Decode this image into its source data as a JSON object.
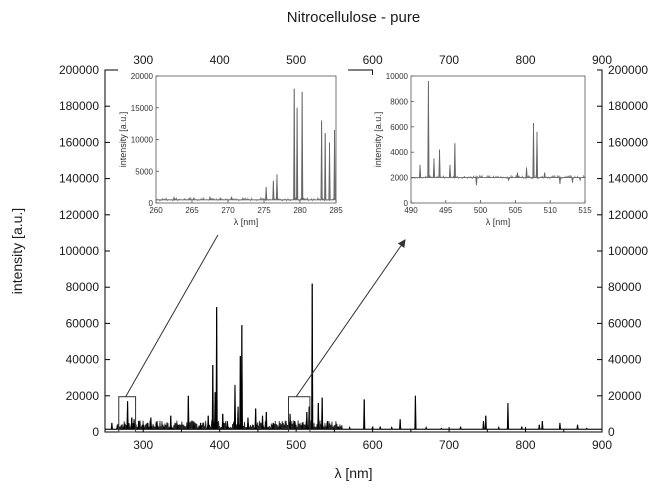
{
  "chart_data": {
    "type": "line",
    "title": "Nitrocellulose - pure",
    "xlabel": "λ [nm]",
    "ylabel": "intensity [a.u.]",
    "xlim": [
      250,
      900
    ],
    "ylim": [
      0,
      200000
    ],
    "x_ticks": [
      300,
      400,
      500,
      600,
      700,
      800,
      900
    ],
    "y_ticks": [
      0,
      20000,
      40000,
      60000,
      80000,
      100000,
      120000,
      140000,
      160000,
      180000,
      200000
    ],
    "x_tick_labels": [
      "300",
      "400",
      "500",
      "600",
      "700",
      "800",
      "900"
    ],
    "y_tick_labels": [
      "0",
      "20000",
      "40000",
      "60000",
      "80000",
      "100000",
      "120000",
      "140000",
      "160000",
      "180000",
      "200000"
    ],
    "top_tick_labels": [
      "300",
      "400",
      "500",
      "600",
      "700",
      "800",
      "900"
    ],
    "right_tick_labels": [
      "0",
      "20000",
      "40000",
      "60000",
      "80000",
      "100000",
      "120000",
      "140000",
      "160000",
      "180000",
      "200000"
    ],
    "baseline": 1500,
    "peaks": [
      {
        "x": 259,
        "y": 5000
      },
      {
        "x": 266,
        "y": 3000
      },
      {
        "x": 275,
        "y": 4000
      },
      {
        "x": 279.5,
        "y": 17000
      },
      {
        "x": 285,
        "y": 8000
      },
      {
        "x": 288,
        "y": 7000
      },
      {
        "x": 294,
        "y": 6000
      },
      {
        "x": 300,
        "y": 4000
      },
      {
        "x": 306,
        "y": 5000
      },
      {
        "x": 310,
        "y": 8000
      },
      {
        "x": 318,
        "y": 6000
      },
      {
        "x": 327,
        "y": 3000
      },
      {
        "x": 336,
        "y": 9000
      },
      {
        "x": 345,
        "y": 4000
      },
      {
        "x": 359,
        "y": 20000
      },
      {
        "x": 366,
        "y": 4000
      },
      {
        "x": 375,
        "y": 5000
      },
      {
        "x": 385,
        "y": 9000
      },
      {
        "x": 391,
        "y": 37000
      },
      {
        "x": 394,
        "y": 22000
      },
      {
        "x": 396,
        "y": 69000
      },
      {
        "x": 404,
        "y": 10000
      },
      {
        "x": 410,
        "y": 6000
      },
      {
        "x": 420,
        "y": 26000
      },
      {
        "x": 424,
        "y": 14000
      },
      {
        "x": 427,
        "y": 42000
      },
      {
        "x": 429,
        "y": 59000
      },
      {
        "x": 437,
        "y": 8000
      },
      {
        "x": 447,
        "y": 13000
      },
      {
        "x": 456,
        "y": 9000
      },
      {
        "x": 461,
        "y": 11000
      },
      {
        "x": 470,
        "y": 5000
      },
      {
        "x": 479,
        "y": 3000
      },
      {
        "x": 492,
        "y": 10000
      },
      {
        "x": 498,
        "y": 6000
      },
      {
        "x": 508,
        "y": 4000
      },
      {
        "x": 514,
        "y": 11000
      },
      {
        "x": 517,
        "y": 14000
      },
      {
        "x": 521,
        "y": 82000
      },
      {
        "x": 529,
        "y": 16000
      },
      {
        "x": 534,
        "y": 19000
      },
      {
        "x": 541,
        "y": 6000
      },
      {
        "x": 555,
        "y": 3000
      },
      {
        "x": 570,
        "y": 2500
      },
      {
        "x": 589,
        "y": 18000
      },
      {
        "x": 600,
        "y": 3000
      },
      {
        "x": 610,
        "y": 3000
      },
      {
        "x": 625,
        "y": 2500
      },
      {
        "x": 636,
        "y": 7000
      },
      {
        "x": 656,
        "y": 20000
      },
      {
        "x": 670,
        "y": 2500
      },
      {
        "x": 690,
        "y": 2000
      },
      {
        "x": 715,
        "y": 3000
      },
      {
        "x": 745,
        "y": 6000
      },
      {
        "x": 748,
        "y": 9000
      },
      {
        "x": 765,
        "y": 2500
      },
      {
        "x": 777,
        "y": 16000
      },
      {
        "x": 795,
        "y": 3000
      },
      {
        "x": 818,
        "y": 4000
      },
      {
        "x": 822,
        "y": 6000
      },
      {
        "x": 845,
        "y": 5000
      },
      {
        "x": 868,
        "y": 4000
      },
      {
        "x": 880,
        "y": 2000
      }
    ],
    "insets": [
      {
        "xlabel": "λ [nm]",
        "ylabel": "intensity [a.u.]",
        "xlim": [
          260,
          285
        ],
        "ylim": [
          0,
          20000
        ],
        "x_tick_labels": [
          "260",
          "265",
          "270",
          "275",
          "280",
          "285"
        ],
        "x_ticks": [
          260,
          265,
          270,
          275,
          280,
          285
        ],
        "y_tick_labels": [
          "0",
          "5000",
          "10000",
          "15000",
          "20000"
        ],
        "y_ticks": [
          0,
          5000,
          10000,
          15000,
          20000
        ],
        "baseline": 500,
        "peaks": [
          {
            "x": 262.5,
            "y": 900
          },
          {
            "x": 267.5,
            "y": 1000
          },
          {
            "x": 270.5,
            "y": 900
          },
          {
            "x": 275.3,
            "y": 2500
          },
          {
            "x": 276.3,
            "y": 3500
          },
          {
            "x": 276.8,
            "y": 4500
          },
          {
            "x": 279.2,
            "y": 18000
          },
          {
            "x": 279.6,
            "y": 15000
          },
          {
            "x": 280.3,
            "y": 17500
          },
          {
            "x": 283.0,
            "y": 13000
          },
          {
            "x": 283.5,
            "y": 11000
          },
          {
            "x": 284.1,
            "y": 9500
          },
          {
            "x": 284.8,
            "y": 11500
          }
        ]
      },
      {
        "xlabel": "λ [nm]",
        "ylabel": "intensity [a.u.]",
        "xlim": [
          490,
          515
        ],
        "ylim": [
          0,
          10000
        ],
        "x_tick_labels": [
          "490",
          "495",
          "500",
          "505",
          "510",
          "515"
        ],
        "x_ticks": [
          490,
          495,
          500,
          505,
          510,
          515
        ],
        "y_tick_labels": [
          "0",
          "2000",
          "4000",
          "6000",
          "8000",
          "10000"
        ],
        "y_ticks": [
          0,
          2000,
          4000,
          6000,
          8000,
          10000
        ],
        "baseline": 2000,
        "peaks": [
          {
            "x": 491.3,
            "y": 3000
          },
          {
            "x": 492.5,
            "y": 9600
          },
          {
            "x": 493.3,
            "y": 3500
          },
          {
            "x": 494.1,
            "y": 4200
          },
          {
            "x": 495.6,
            "y": 3000
          },
          {
            "x": 496.3,
            "y": 4700
          },
          {
            "x": 499.4,
            "y": 1400
          },
          {
            "x": 504.0,
            "y": 1800
          },
          {
            "x": 505.3,
            "y": 2400
          },
          {
            "x": 506.6,
            "y": 2800
          },
          {
            "x": 507.6,
            "y": 6300
          },
          {
            "x": 508.1,
            "y": 5600
          },
          {
            "x": 509.2,
            "y": 2400
          },
          {
            "x": 511.4,
            "y": 1500
          },
          {
            "x": 513.2,
            "y": 1600
          },
          {
            "x": 514.3,
            "y": 1800
          }
        ]
      }
    ],
    "zoom_boxes": [
      {
        "xlim": [
          268,
          290
        ],
        "ylim": [
          0,
          19500
        ]
      },
      {
        "xlim": [
          490,
          518
        ],
        "ylim": [
          0,
          19500
        ]
      }
    ]
  }
}
